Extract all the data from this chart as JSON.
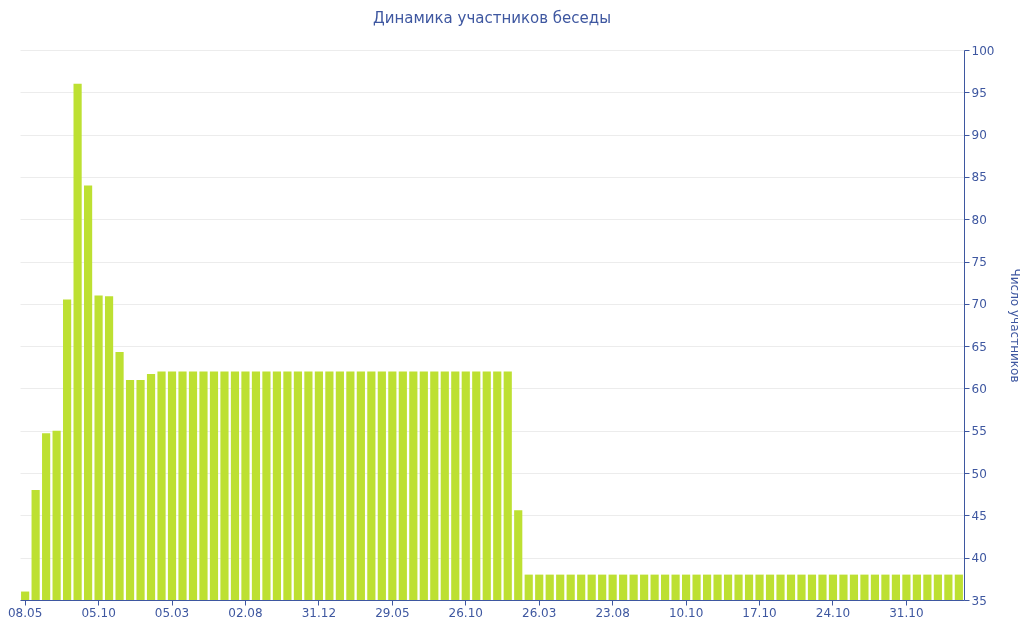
{
  "chart_data": {
    "type": "bar",
    "title": "Динамика участников беседы",
    "ylabel": "Число участников",
    "categories": [
      "08.05",
      null,
      null,
      null,
      null,
      null,
      null,
      "05.10",
      null,
      null,
      null,
      null,
      null,
      null,
      "05.03",
      null,
      null,
      null,
      null,
      null,
      null,
      "02.08",
      null,
      null,
      null,
      null,
      null,
      null,
      "31.12",
      null,
      null,
      null,
      null,
      null,
      null,
      "29.05",
      null,
      null,
      null,
      null,
      null,
      null,
      "26.10",
      null,
      null,
      null,
      null,
      null,
      null,
      "26.03",
      null,
      null,
      null,
      null,
      null,
      null,
      "23.08",
      null,
      null,
      null,
      null,
      null,
      null,
      "10.10",
      null,
      null,
      null,
      null,
      null,
      null,
      "17.10",
      null,
      null,
      null,
      null,
      null,
      null,
      "24.10",
      null,
      null,
      null,
      null,
      null,
      null,
      "31.10",
      null,
      null,
      null,
      null,
      null
    ],
    "values": [
      36,
      48,
      54.7,
      55,
      70.5,
      96,
      84,
      71,
      70.9,
      64.3,
      61,
      61,
      61.7,
      62,
      62,
      62,
      62,
      62,
      62,
      62,
      62,
      62,
      62,
      62,
      62,
      62,
      62,
      62,
      62,
      62,
      62,
      62,
      62,
      62,
      62,
      62,
      62,
      62,
      62,
      62,
      62,
      62,
      62,
      62,
      62,
      62,
      62,
      45.6,
      38,
      38,
      38,
      38,
      38,
      38,
      38,
      38,
      38,
      38,
      38,
      38,
      38,
      38,
      38,
      38,
      38,
      38,
      38,
      38,
      38,
      38,
      38,
      38,
      38,
      38,
      38,
      38,
      38,
      38,
      38,
      38,
      38,
      38,
      38,
      38,
      38,
      38,
      38,
      38,
      38,
      38
    ],
    "color": "#bde032",
    "ylim": [
      35,
      100
    ],
    "yticks": [
      35,
      40,
      45,
      50,
      55,
      60,
      65,
      70,
      75,
      80,
      85,
      90,
      95,
      100
    ],
    "grid": true
  }
}
